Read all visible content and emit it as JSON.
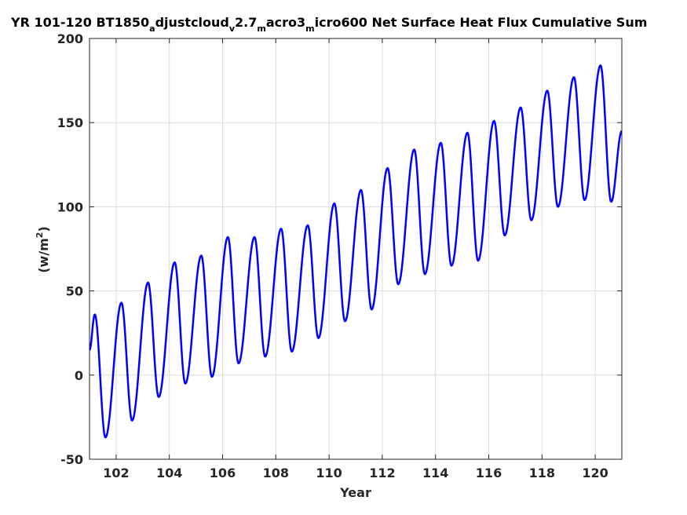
{
  "chart_data": {
    "type": "line",
    "title": {
      "parts": [
        {
          "text": "YR 101-120 BT1850",
          "sub": false
        },
        {
          "text": "a",
          "sub": true
        },
        {
          "text": "djustcloud",
          "sub": false
        },
        {
          "text": "v",
          "sub": true
        },
        {
          "text": "2.7",
          "sub": false
        },
        {
          "text": "m",
          "sub": true
        },
        {
          "text": "acro3",
          "sub": false
        },
        {
          "text": "m",
          "sub": true
        },
        {
          "text": "icro600 Net Surface Heat Flux  Cumulative Sum",
          "sub": false
        }
      ]
    },
    "xlabel": "Year",
    "ylabel": {
      "base": "(w/m",
      "sup": "2",
      "end": ")"
    },
    "xlim": [
      101,
      121
    ],
    "ylim": [
      -50,
      200
    ],
    "xticks": [
      102,
      104,
      106,
      108,
      110,
      112,
      114,
      116,
      118,
      120
    ],
    "yticks": [
      -50,
      0,
      50,
      100,
      150,
      200
    ],
    "grid": true,
    "line_color": "#0000ff",
    "series": [
      {
        "peaks": [
          [
            101.2,
            36
          ],
          [
            102.2,
            43
          ],
          [
            103.2,
            55
          ],
          [
            104.2,
            67
          ],
          [
            105.2,
            71
          ],
          [
            106.2,
            82
          ],
          [
            107.2,
            82
          ],
          [
            108.2,
            87
          ],
          [
            109.2,
            89
          ],
          [
            110.2,
            102
          ],
          [
            111.2,
            110
          ],
          [
            112.2,
            123
          ],
          [
            113.2,
            134
          ],
          [
            114.2,
            138
          ],
          [
            115.2,
            144
          ],
          [
            116.2,
            151
          ],
          [
            117.2,
            159
          ],
          [
            118.2,
            169
          ],
          [
            119.2,
            177
          ],
          [
            120.2,
            184
          ]
        ],
        "troughs": [
          [
            101.6,
            -37
          ],
          [
            102.6,
            -27
          ],
          [
            103.6,
            -13
          ],
          [
            104.6,
            -5
          ],
          [
            105.6,
            -1
          ],
          [
            106.6,
            7
          ],
          [
            107.6,
            11
          ],
          [
            108.6,
            14
          ],
          [
            109.6,
            22
          ],
          [
            110.6,
            32
          ],
          [
            111.6,
            39
          ],
          [
            112.6,
            54
          ],
          [
            113.6,
            60
          ],
          [
            114.6,
            65
          ],
          [
            115.6,
            68
          ],
          [
            116.6,
            83
          ],
          [
            117.6,
            92
          ],
          [
            118.6,
            100
          ],
          [
            119.6,
            104
          ],
          [
            120.6,
            103
          ]
        ],
        "start": [
          101,
          15
        ],
        "end": [
          121,
          145
        ]
      }
    ]
  }
}
